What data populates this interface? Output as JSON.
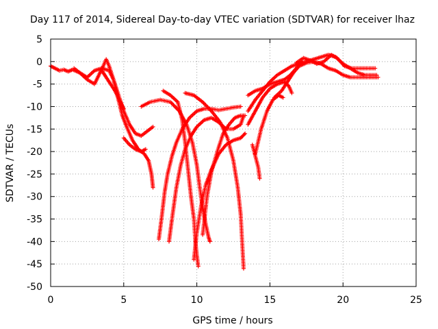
{
  "chart_data": {
    "type": "scatter",
    "title": "Day 117 of 2014, Sidereal Day-to-day VTEC variation (SDTVAR) for receiver lhaz",
    "xlabel": "GPS time / hours",
    "ylabel": "SDTVAR / TECUs",
    "xlim": [
      0,
      25
    ],
    "ylim": [
      -50,
      5
    ],
    "xticks": [
      0,
      5,
      10,
      15,
      20,
      25
    ],
    "yticks": [
      5,
      0,
      -5,
      -10,
      -15,
      -20,
      -25,
      -30,
      -35,
      -40,
      -45,
      -50
    ],
    "grid": true,
    "marker": "plus",
    "color": "#ff0000",
    "series": [
      {
        "points": [
          [
            0.0,
            -1.0
          ],
          [
            0.3,
            -1.5
          ],
          [
            0.6,
            -2.0
          ],
          [
            0.9,
            -1.8
          ],
          [
            1.2,
            -2.2
          ],
          [
            1.5,
            -1.8
          ],
          [
            2.0,
            -2.5
          ],
          [
            2.5,
            -3.5
          ],
          [
            3.0,
            -2.0
          ],
          [
            3.5,
            -1.5
          ],
          [
            4.0,
            -2.0
          ],
          [
            4.3,
            -4.0
          ],
          [
            4.6,
            -7.0
          ],
          [
            5.0,
            -11.0
          ],
          [
            5.4,
            -14.0
          ],
          [
            5.8,
            -16.0
          ],
          [
            6.2,
            -16.5
          ],
          [
            6.6,
            -15.5
          ],
          [
            7.0,
            -14.5
          ]
        ]
      },
      {
        "points": [
          [
            1.6,
            -1.5
          ],
          [
            2.0,
            -2.5
          ],
          [
            2.5,
            -4.0
          ],
          [
            3.0,
            -5.0
          ],
          [
            3.3,
            -3.0
          ],
          [
            3.6,
            -1.0
          ],
          [
            3.8,
            0.5
          ],
          [
            4.0,
            -1.0
          ],
          [
            4.3,
            -4.0
          ],
          [
            4.6,
            -8.0
          ],
          [
            4.9,
            -12.0
          ],
          [
            5.2,
            -14.5
          ],
          [
            5.6,
            -17.5
          ],
          [
            6.0,
            -19.5
          ],
          [
            6.4,
            -20.5
          ],
          [
            6.7,
            -22.0
          ],
          [
            6.9,
            -25.0
          ],
          [
            7.0,
            -28.0
          ]
        ]
      },
      {
        "points": [
          [
            3.5,
            -2.0
          ],
          [
            3.8,
            -3.5
          ],
          [
            4.1,
            -5.0
          ],
          [
            4.4,
            -6.5
          ],
          [
            4.7,
            -8.5
          ],
          [
            5.0,
            -10.5
          ]
        ]
      },
      {
        "points": [
          [
            5.0,
            -17.0
          ],
          [
            5.4,
            -18.5
          ],
          [
            5.8,
            -19.5
          ],
          [
            6.2,
            -20.0
          ],
          [
            6.5,
            -19.5
          ]
        ]
      },
      {
        "points": [
          [
            6.2,
            -10.0
          ],
          [
            6.8,
            -9.0
          ],
          [
            7.5,
            -8.5
          ],
          [
            8.2,
            -9.0
          ],
          [
            8.8,
            -11.0
          ],
          [
            9.3,
            -14.0
          ],
          [
            9.7,
            -18.0
          ],
          [
            10.0,
            -23.0
          ],
          [
            10.2,
            -28.0
          ],
          [
            10.4,
            -32.5
          ],
          [
            10.6,
            -36.0
          ],
          [
            10.8,
            -39.0
          ],
          [
            10.9,
            -40.0
          ]
        ]
      },
      {
        "points": [
          [
            7.4,
            -39.5
          ],
          [
            7.6,
            -34.5
          ],
          [
            7.8,
            -29.0
          ],
          [
            8.0,
            -25.0
          ],
          [
            8.3,
            -21.0
          ],
          [
            8.6,
            -18.0
          ],
          [
            9.0,
            -15.0
          ],
          [
            9.5,
            -12.5
          ],
          [
            10.0,
            -11.0
          ],
          [
            10.5,
            -10.5
          ],
          [
            11.0,
            -10.5
          ],
          [
            11.5,
            -10.8
          ],
          [
            12.0,
            -10.5
          ],
          [
            12.5,
            -10.2
          ],
          [
            13.0,
            -10.0
          ]
        ]
      },
      {
        "points": [
          [
            8.1,
            -40.0
          ],
          [
            8.3,
            -35.0
          ],
          [
            8.6,
            -28.0
          ],
          [
            8.9,
            -23.0
          ],
          [
            9.2,
            -19.5
          ],
          [
            9.6,
            -16.5
          ],
          [
            10.0,
            -14.5
          ],
          [
            10.5,
            -13.0
          ],
          [
            11.0,
            -12.5
          ],
          [
            11.5,
            -13.5
          ],
          [
            12.0,
            -15.0
          ],
          [
            12.5,
            -15.0
          ],
          [
            13.0,
            -14.0
          ],
          [
            13.2,
            -12.0
          ]
        ]
      },
      {
        "points": [
          [
            7.7,
            -6.5
          ],
          [
            8.2,
            -7.5
          ],
          [
            8.7,
            -9.0
          ],
          [
            9.0,
            -13.0
          ],
          [
            9.2,
            -18.0
          ],
          [
            9.4,
            -24.0
          ],
          [
            9.6,
            -30.0
          ],
          [
            9.8,
            -35.0
          ],
          [
            9.9,
            -40.0
          ],
          [
            10.0,
            -43.0
          ],
          [
            10.1,
            -45.5
          ]
        ]
      },
      {
        "points": [
          [
            9.2,
            -7.0
          ],
          [
            9.8,
            -7.5
          ],
          [
            10.4,
            -9.0
          ],
          [
            11.0,
            -11.0
          ],
          [
            11.6,
            -13.5
          ],
          [
            12.1,
            -17.0
          ],
          [
            12.5,
            -22.0
          ],
          [
            12.8,
            -28.0
          ],
          [
            13.0,
            -34.0
          ],
          [
            13.1,
            -40.0
          ],
          [
            13.2,
            -46.0
          ]
        ]
      },
      {
        "points": [
          [
            9.8,
            -44.0
          ],
          [
            10.0,
            -38.0
          ],
          [
            10.3,
            -32.0
          ],
          [
            10.6,
            -27.5
          ],
          [
            11.0,
            -24.0
          ],
          [
            11.5,
            -20.5
          ],
          [
            12.0,
            -18.5
          ],
          [
            12.5,
            -17.5
          ],
          [
            13.0,
            -17.0
          ],
          [
            13.3,
            -16.0
          ]
        ]
      },
      {
        "points": [
          [
            10.4,
            -38.5
          ],
          [
            10.7,
            -30.0
          ],
          [
            11.0,
            -24.5
          ],
          [
            11.4,
            -20.0
          ],
          [
            11.8,
            -16.0
          ],
          [
            12.2,
            -14.0
          ],
          [
            12.6,
            -12.5
          ],
          [
            13.0,
            -12.0
          ],
          [
            13.3,
            -12.0
          ]
        ]
      },
      {
        "points": [
          [
            13.8,
            -18.5
          ],
          [
            14.0,
            -21.0
          ],
          [
            14.2,
            -23.5
          ],
          [
            14.3,
            -26.0
          ]
        ]
      },
      {
        "points": [
          [
            13.5,
            -7.5
          ],
          [
            14.0,
            -6.5
          ],
          [
            14.5,
            -6.0
          ],
          [
            15.0,
            -5.0
          ],
          [
            15.5,
            -4.5
          ],
          [
            16.0,
            -4.0
          ],
          [
            16.4,
            -3.0
          ],
          [
            16.8,
            -1.5
          ],
          [
            17.2,
            0.0
          ]
        ]
      },
      {
        "points": [
          [
            13.5,
            -14.0
          ],
          [
            14.0,
            -11.0
          ],
          [
            14.5,
            -8.0
          ],
          [
            15.0,
            -6.0
          ],
          [
            15.5,
            -5.0
          ],
          [
            16.0,
            -4.5
          ],
          [
            16.3,
            -5.5
          ],
          [
            16.5,
            -7.0
          ]
        ]
      },
      {
        "points": [
          [
            14.0,
            -20.5
          ],
          [
            14.4,
            -15.0
          ],
          [
            14.8,
            -11.0
          ],
          [
            15.2,
            -8.5
          ],
          [
            15.6,
            -7.5
          ],
          [
            15.9,
            -8.0
          ]
        ]
      },
      {
        "points": [
          [
            13.5,
            -11.0
          ],
          [
            14.0,
            -8.5
          ],
          [
            14.5,
            -6.5
          ],
          [
            15.0,
            -4.5
          ],
          [
            15.5,
            -3.0
          ],
          [
            16.0,
            -2.0
          ],
          [
            16.5,
            -1.0
          ],
          [
            17.0,
            -0.5
          ],
          [
            17.5,
            0.0
          ],
          [
            18.0,
            0.5
          ],
          [
            18.5,
            1.0
          ],
          [
            19.0,
            1.5
          ],
          [
            19.5,
            1.0
          ],
          [
            20.0,
            -0.5
          ],
          [
            20.5,
            -1.5
          ],
          [
            21.0,
            -2.5
          ],
          [
            21.5,
            -3.0
          ],
          [
            22.0,
            -3.0
          ],
          [
            22.3,
            -3.0
          ]
        ]
      },
      {
        "points": [
          [
            15.3,
            -8.0
          ],
          [
            15.8,
            -6.5
          ],
          [
            16.2,
            -4.5
          ],
          [
            16.6,
            -2.5
          ],
          [
            17.0,
            -1.0
          ],
          [
            17.5,
            -0.3
          ],
          [
            18.0,
            0.0
          ],
          [
            18.5,
            -0.5
          ],
          [
            19.0,
            -1.5
          ],
          [
            19.5,
            -2.0
          ],
          [
            20.0,
            -3.0
          ],
          [
            20.5,
            -3.5
          ],
          [
            21.0,
            -3.5
          ],
          [
            21.5,
            -3.5
          ],
          [
            22.0,
            -3.5
          ],
          [
            22.4,
            -3.5
          ]
        ]
      },
      {
        "points": [
          [
            16.8,
            -0.3
          ],
          [
            17.3,
            0.8
          ],
          [
            17.8,
            0.2
          ],
          [
            18.2,
            -0.5
          ],
          [
            18.7,
            0.0
          ],
          [
            19.2,
            1.5
          ],
          [
            19.6,
            0.8
          ],
          [
            20.1,
            -1.0
          ],
          [
            20.6,
            -1.5
          ],
          [
            21.2,
            -1.5
          ],
          [
            21.7,
            -1.5
          ],
          [
            22.2,
            -1.5
          ]
        ]
      }
    ]
  }
}
